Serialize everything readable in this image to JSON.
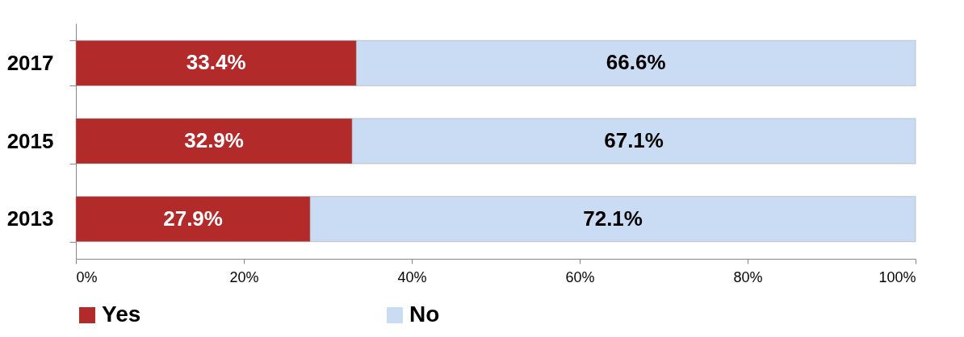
{
  "chart_data": {
    "type": "bar",
    "orientation": "horizontal",
    "stacked": true,
    "categories": [
      "2017",
      "2015",
      "2013"
    ],
    "series": [
      {
        "name": "Yes",
        "color": "#b22a2a",
        "values": [
          33.4,
          32.9,
          27.9
        ],
        "value_labels": [
          "33.4%",
          "32.9%",
          "27.9%"
        ]
      },
      {
        "name": "No",
        "color": "#c9dcf3",
        "values": [
          66.6,
          67.1,
          72.1
        ],
        "value_labels": [
          "66.6%",
          "67.1%",
          "72.1%"
        ]
      }
    ],
    "xlim": [
      0,
      100
    ],
    "xticks": [
      {
        "value": 0,
        "label": "0%"
      },
      {
        "value": 20,
        "label": "20%"
      },
      {
        "value": 40,
        "label": "40%"
      },
      {
        "value": 60,
        "label": "60%"
      },
      {
        "value": 80,
        "label": "80%"
      },
      {
        "value": 100,
        "label": "100%"
      }
    ],
    "legend": "bottom",
    "grid": false
  }
}
